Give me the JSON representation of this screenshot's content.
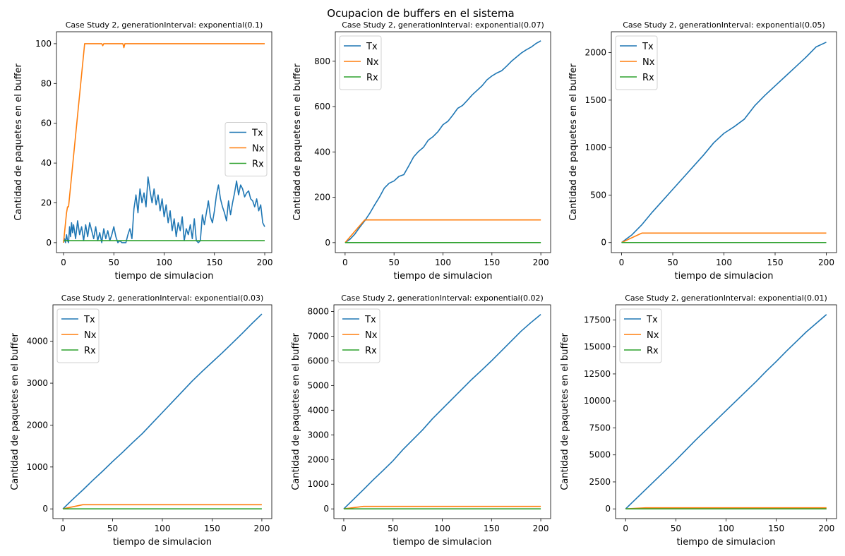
{
  "figure": {
    "title": "Ocupacion de buffers en el sistema",
    "colors": {
      "Tx": "#1f77b4",
      "Nx": "#ff7f0e",
      "Rx": "#2ca02c"
    }
  },
  "chart_data": [
    {
      "type": "line",
      "title": "Case Study 2, generationInterval: exponential(0.1)",
      "xlabel": "tiempo de simulacion",
      "ylabel": "Cantidad de paquetes en el buffer",
      "xlim": [
        -7,
        207
      ],
      "ylim": [
        -5,
        106
      ],
      "xticks": [
        0,
        50,
        100,
        150,
        200
      ],
      "yticks": [
        0,
        20,
        40,
        60,
        80,
        100
      ],
      "yticklabels": [
        "0",
        "20",
        "40",
        "60",
        "80",
        "100"
      ],
      "legend": "center-right",
      "series": [
        {
          "name": "Tx",
          "x": [
            0,
            1,
            2,
            3,
            4,
            5,
            6,
            7,
            8,
            9,
            10,
            12,
            14,
            16,
            18,
            20,
            22,
            24,
            26,
            28,
            30,
            32,
            34,
            36,
            38,
            40,
            42,
            44,
            46,
            48,
            50,
            52,
            54,
            56,
            58,
            60,
            62,
            64,
            66,
            68,
            70,
            72,
            74,
            76,
            78,
            80,
            82,
            84,
            86,
            88,
            90,
            92,
            94,
            96,
            98,
            100,
            102,
            104,
            106,
            108,
            110,
            112,
            114,
            116,
            118,
            120,
            122,
            124,
            126,
            128,
            130,
            132,
            134,
            136,
            138,
            140,
            142,
            144,
            146,
            148,
            150,
            152,
            154,
            156,
            158,
            160,
            162,
            164,
            166,
            168,
            170,
            172,
            174,
            176,
            178,
            180,
            182,
            184,
            186,
            188,
            190,
            192,
            194,
            196,
            198,
            200
          ],
          "y": [
            0,
            2,
            0,
            4,
            1,
            0,
            8,
            3,
            10,
            5,
            9,
            2,
            11,
            4,
            8,
            1,
            9,
            3,
            10,
            6,
            2,
            8,
            1,
            5,
            0,
            7,
            2,
            6,
            1,
            4,
            8,
            3,
            0,
            1,
            0,
            0,
            0,
            4,
            7,
            2,
            17,
            24,
            15,
            27,
            20,
            25,
            18,
            33,
            26,
            20,
            27,
            19,
            24,
            16,
            22,
            13,
            19,
            10,
            16,
            6,
            12,
            3,
            10,
            6,
            13,
            1,
            7,
            4,
            9,
            2,
            12,
            1,
            0,
            1,
            14,
            9,
            15,
            21,
            13,
            10,
            16,
            24,
            29,
            22,
            18,
            15,
            11,
            21,
            14,
            20,
            25,
            31,
            24,
            29,
            27,
            23,
            25,
            26,
            22,
            21,
            18,
            22,
            16,
            19,
            10,
            8
          ]
        },
        {
          "name": "Nx",
          "x": [
            0,
            3,
            4,
            5,
            21,
            25,
            38,
            39,
            40,
            59,
            60,
            61,
            200
          ],
          "y": [
            0,
            15,
            18,
            18,
            100,
            100,
            100,
            99,
            100,
            100,
            98,
            100,
            100
          ]
        },
        {
          "name": "Rx",
          "x": [
            0,
            200
          ],
          "y": [
            1,
            1
          ]
        }
      ]
    },
    {
      "type": "line",
      "title": "Case Study 2, generationInterval: exponential(0.07)",
      "xlabel": "tiempo de simulacion",
      "ylabel": "Cantidad de paquetes en el buffer",
      "xlim": [
        -10,
        210
      ],
      "ylim": [
        -44,
        930
      ],
      "xticks": [
        0,
        50,
        100,
        150,
        200
      ],
      "yticks": [
        0,
        200,
        400,
        600,
        800
      ],
      "yticklabels": [
        "0",
        "200",
        "400",
        "600",
        "800"
      ],
      "legend": "upper-left",
      "series": [
        {
          "name": "Tx",
          "x": [
            0,
            5,
            10,
            15,
            20,
            25,
            30,
            35,
            40,
            45,
            50,
            55,
            60,
            65,
            70,
            75,
            80,
            85,
            90,
            95,
            100,
            105,
            110,
            115,
            120,
            125,
            130,
            135,
            140,
            145,
            150,
            155,
            160,
            165,
            170,
            175,
            180,
            185,
            190,
            195,
            200
          ],
          "y": [
            0,
            15,
            38,
            68,
            96,
            128,
            165,
            200,
            240,
            262,
            272,
            292,
            300,
            338,
            378,
            402,
            420,
            452,
            468,
            490,
            520,
            535,
            562,
            592,
            605,
            628,
            652,
            672,
            692,
            718,
            735,
            748,
            758,
            778,
            800,
            818,
            836,
            850,
            862,
            878,
            890
          ]
        },
        {
          "name": "Nx",
          "x": [
            0,
            20,
            200
          ],
          "y": [
            0,
            100,
            100
          ]
        },
        {
          "name": "Rx",
          "x": [
            0,
            200
          ],
          "y": [
            0,
            0
          ]
        }
      ]
    },
    {
      "type": "line",
      "title": "Case Study 2, generationInterval: exponential(0.05)",
      "xlabel": "tiempo de simulacion",
      "ylabel": "Cantidad de paquetes en el buffer",
      "xlim": [
        -10,
        210
      ],
      "ylim": [
        -106,
        2220
      ],
      "xticks": [
        0,
        50,
        100,
        150,
        200
      ],
      "yticks": [
        0,
        500,
        1000,
        1500,
        2000
      ],
      "yticklabels": [
        "0",
        "500",
        "1000",
        "1500",
        "2000"
      ],
      "legend": "upper-left",
      "series": [
        {
          "name": "Tx",
          "x": [
            0,
            10,
            20,
            30,
            40,
            50,
            60,
            70,
            80,
            90,
            100,
            110,
            120,
            130,
            140,
            150,
            160,
            170,
            180,
            190,
            200
          ],
          "y": [
            0,
            80,
            190,
            320,
            440,
            560,
            680,
            800,
            920,
            1050,
            1150,
            1220,
            1300,
            1440,
            1550,
            1650,
            1750,
            1850,
            1950,
            2060,
            2110
          ]
        },
        {
          "name": "Nx",
          "x": [
            0,
            20,
            200
          ],
          "y": [
            0,
            100,
            100
          ]
        },
        {
          "name": "Rx",
          "x": [
            0,
            200
          ],
          "y": [
            0,
            0
          ]
        }
      ]
    },
    {
      "type": "line",
      "title": "Case Study 2, generationInterval: exponential(0.03)",
      "xlabel": "tiempo de simulacion",
      "ylabel": "Cantidad de paquetes en el buffer",
      "xlim": [
        -10,
        210
      ],
      "ylim": [
        -232,
        4870
      ],
      "xticks": [
        0,
        50,
        100,
        150,
        200
      ],
      "yticks": [
        0,
        1000,
        2000,
        3000,
        4000
      ],
      "yticklabels": [
        "0",
        "1000",
        "2000",
        "3000",
        "4000"
      ],
      "legend": "upper-left",
      "series": [
        {
          "name": "Tx",
          "x": [
            0,
            10,
            20,
            30,
            40,
            50,
            60,
            70,
            80,
            90,
            100,
            110,
            120,
            130,
            140,
            150,
            160,
            170,
            180,
            190,
            200
          ],
          "y": [
            0,
            230,
            450,
            680,
            900,
            1130,
            1350,
            1580,
            1800,
            2050,
            2300,
            2550,
            2800,
            3050,
            3280,
            3500,
            3720,
            3950,
            4180,
            4420,
            4650
          ]
        },
        {
          "name": "Nx",
          "x": [
            0,
            20,
            200
          ],
          "y": [
            0,
            100,
            100
          ]
        },
        {
          "name": "Rx",
          "x": [
            0,
            200
          ],
          "y": [
            0,
            0
          ]
        }
      ]
    },
    {
      "type": "line",
      "title": "Case Study 2, generationInterval: exponential(0.02)",
      "xlabel": "tiempo de simulacion",
      "ylabel": "Cantidad de paquetes en el buffer",
      "xlim": [
        -10,
        210
      ],
      "ylim": [
        -394,
        8270
      ],
      "xticks": [
        0,
        50,
        100,
        150,
        200
      ],
      "yticks": [
        0,
        1000,
        2000,
        3000,
        4000,
        5000,
        6000,
        7000,
        8000
      ],
      "yticklabels": [
        "0",
        "1000",
        "2000",
        "3000",
        "4000",
        "5000",
        "6000",
        "7000",
        "8000"
      ],
      "legend": "upper-left",
      "series": [
        {
          "name": "Tx",
          "x": [
            0,
            10,
            20,
            30,
            40,
            50,
            60,
            70,
            80,
            90,
            100,
            110,
            120,
            130,
            140,
            150,
            160,
            170,
            180,
            190,
            200
          ],
          "y": [
            0,
            390,
            780,
            1180,
            1560,
            1950,
            2400,
            2800,
            3200,
            3650,
            4050,
            4450,
            4850,
            5250,
            5620,
            6000,
            6400,
            6800,
            7200,
            7550,
            7880
          ]
        },
        {
          "name": "Nx",
          "x": [
            0,
            20,
            200
          ],
          "y": [
            0,
            100,
            100
          ]
        },
        {
          "name": "Rx",
          "x": [
            0,
            200
          ],
          "y": [
            0,
            0
          ]
        }
      ]
    },
    {
      "type": "line",
      "title": "Case Study 2, generationInterval: exponential(0.01)",
      "xlabel": "tiempo de simulacion",
      "ylabel": "Cantidad de paquetes en el buffer",
      "xlim": [
        -10,
        210
      ],
      "ylim": [
        -900,
        18900
      ],
      "xticks": [
        0,
        50,
        100,
        150,
        200
      ],
      "yticks": [
        0,
        2500,
        5000,
        7500,
        10000,
        12500,
        15000,
        17500
      ],
      "yticklabels": [
        "0",
        "2500",
        "5000",
        "7500",
        "10000",
        "12500",
        "15000",
        "17500"
      ],
      "legend": "upper-left",
      "series": [
        {
          "name": "Tx",
          "x": [
            0,
            10,
            20,
            30,
            40,
            50,
            60,
            70,
            80,
            90,
            100,
            110,
            120,
            130,
            140,
            150,
            160,
            170,
            180,
            190,
            200
          ],
          "y": [
            0,
            900,
            1800,
            2700,
            3600,
            4500,
            5450,
            6400,
            7300,
            8200,
            9100,
            10000,
            10900,
            11800,
            12750,
            13650,
            14600,
            15500,
            16400,
            17200,
            18000
          ]
        },
        {
          "name": "Nx",
          "x": [
            0,
            20,
            200
          ],
          "y": [
            0,
            100,
            100
          ]
        },
        {
          "name": "Rx",
          "x": [
            0,
            200
          ],
          "y": [
            0,
            0
          ]
        }
      ]
    }
  ]
}
